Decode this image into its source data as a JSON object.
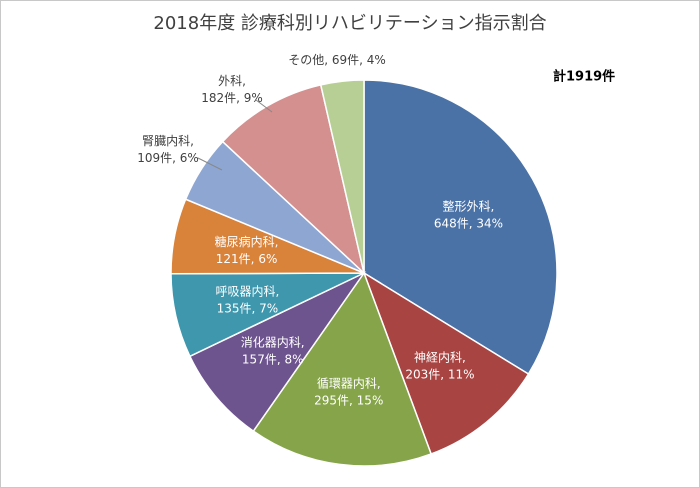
{
  "chart_data": {
    "type": "pie",
    "title": "2018年度 診療科別リハビリテーション指示割合",
    "annotation": "計1919件",
    "values": [
      648,
      203,
      295,
      157,
      135,
      121,
      109,
      182,
      69
    ],
    "value_labels": [
      [
        "整形外科,",
        "648件, 34%"
      ],
      [
        "神経内科,",
        "203件, 11%"
      ],
      [
        "循環器内科,",
        "295件, 15%"
      ],
      [
        "消化器内科,",
        "157件, 8%"
      ],
      [
        "呼吸器内科,",
        "135件, 7%"
      ],
      [
        "糖尿病内科,",
        "121件, 6%"
      ],
      [
        "腎臓内科,",
        "109件, 6%"
      ],
      [
        "外科,",
        "182件, 9%"
      ],
      [
        "その他, 69件, 4%"
      ]
    ],
    "colors": [
      "#4a72a6",
      "#a84442",
      "#86a44a",
      "#6e548f",
      "#3e97ad",
      "#d9823a",
      "#8ea7d2",
      "#d48f8f",
      "#b7cf94"
    ]
  }
}
